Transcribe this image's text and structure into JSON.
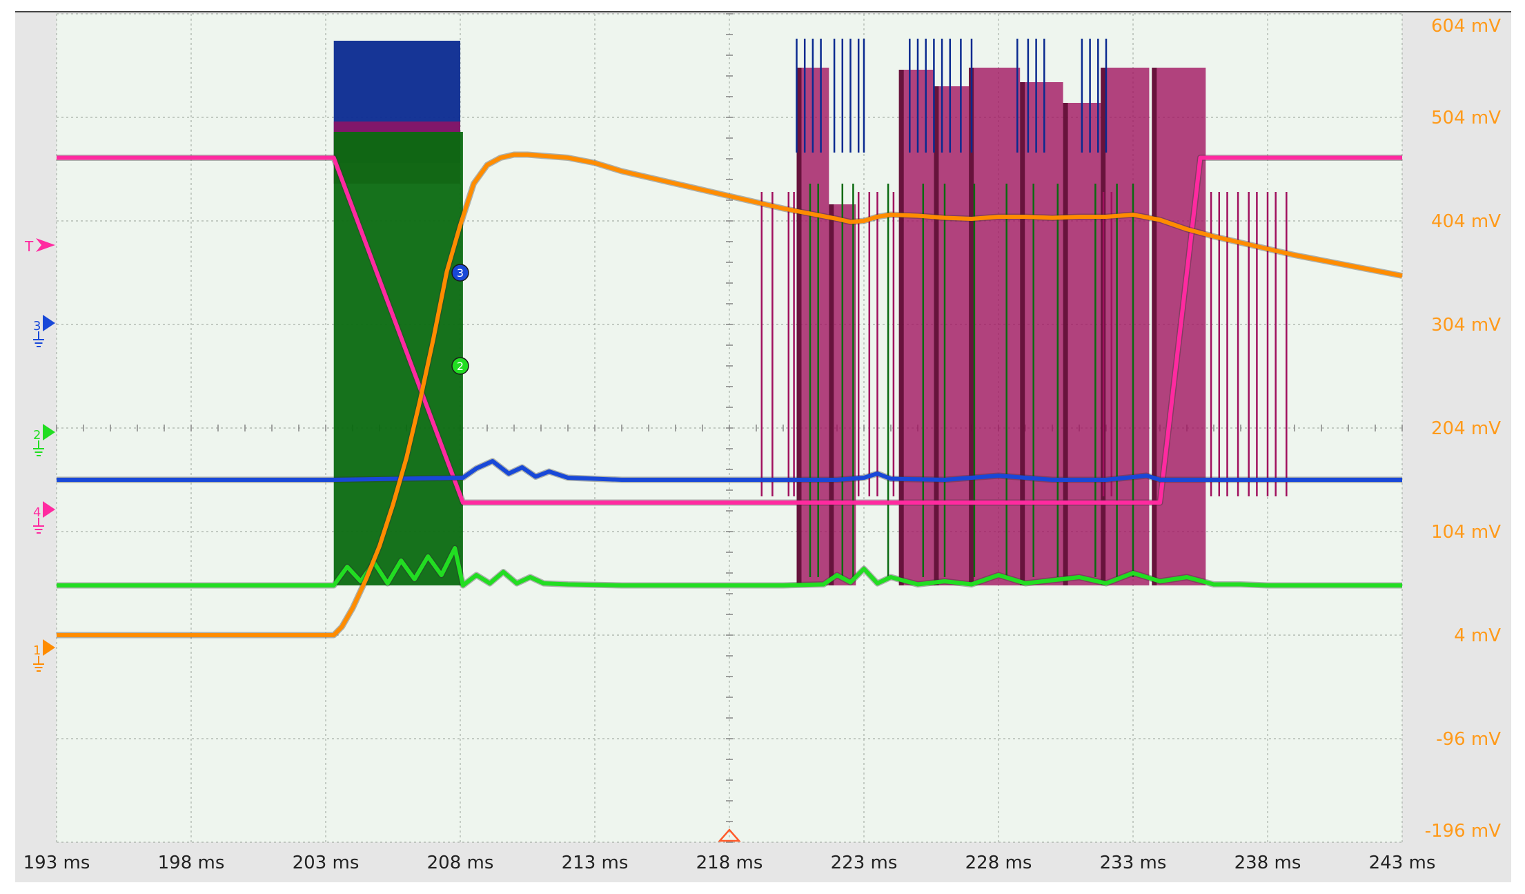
{
  "colors": {
    "ch1": "#ff8c00",
    "ch2": "#22dd22",
    "ch2_burst": "#0a6a10",
    "ch3": "#1848d8",
    "ch3_burst": "#0a2a90",
    "ch4": "#ff2aa0",
    "ch4_burst": "#a0105e",
    "ch4_dark": "#5a0a30",
    "axis_text": "#ff9a1a",
    "grid": "#a8b0a8",
    "plot_bg": "#eef5ee",
    "frame": "#e6e6e6"
  },
  "markers": {
    "trigger": {
      "label": "T",
      "color": "#ff2aa0"
    },
    "channels": [
      {
        "label": "3",
        "color": "#1848d8"
      },
      {
        "label": "2",
        "color": "#22dd22"
      },
      {
        "label": "4",
        "color": "#ff2aa0"
      },
      {
        "label": "1",
        "color": "#ff8c00"
      }
    ]
  },
  "chart_data": {
    "type": "line",
    "title": "",
    "xlabel": "",
    "ylabel": "",
    "x_ticks": [
      "193 ms",
      "198 ms",
      "203 ms",
      "208 ms",
      "213 ms",
      "218 ms",
      "223 ms",
      "228 ms",
      "233 ms",
      "238 ms",
      "243 ms"
    ],
    "y_ticks": [
      "604 mV",
      "504 mV",
      "404 mV",
      "304 mV",
      "204 mV",
      "104 mV",
      "4 mV",
      "-96 mV",
      "-196 mV"
    ],
    "xlim": [
      193,
      243
    ],
    "ylim": [
      -196,
      604
    ],
    "grid": true,
    "series": [
      {
        "id": "ch1",
        "x": [
          193,
          196,
          199,
          202,
          203.3,
          203.6,
          204,
          204.5,
          205,
          205.5,
          206,
          206.5,
          207,
          207.5,
          208,
          208.5,
          209,
          209.5,
          210,
          210.5,
          211,
          212,
          213,
          214,
          215,
          216,
          217,
          218,
          219,
          220,
          221,
          222,
          222.5,
          223,
          223.5,
          224,
          225,
          226,
          227,
          228,
          229,
          230,
          231,
          232,
          233,
          234,
          235,
          236,
          237,
          238,
          239,
          240,
          241,
          242,
          243
        ],
        "y": [
          4,
          4,
          4,
          4,
          4,
          12,
          30,
          58,
          90,
          130,
          175,
          230,
          290,
          355,
          400,
          440,
          458,
          465,
          468,
          468,
          467,
          465,
          460,
          452,
          446,
          440,
          434,
          428,
          422,
          416,
          411,
          406,
          403,
          404,
          408,
          410,
          409,
          407,
          406,
          408,
          408,
          407,
          408,
          408,
          410,
          405,
          396,
          389,
          383,
          377,
          371,
          366,
          361,
          356,
          351
        ]
      },
      {
        "id": "ch2",
        "x": [
          193,
          196,
          199,
          202,
          203.3,
          203.8,
          204.3,
          204.8,
          205.3,
          205.8,
          206.3,
          206.8,
          207.3,
          207.8,
          208.1,
          208.6,
          209.1,
          209.6,
          210.1,
          210.6,
          211.1,
          212,
          214,
          216,
          218,
          220,
          221.5,
          222,
          222.5,
          223,
          223.5,
          224,
          225,
          226,
          227,
          228,
          229,
          230,
          231,
          232,
          233,
          234,
          235,
          236,
          237,
          238,
          240,
          243
        ],
        "y": [
          52,
          52,
          52,
          52,
          52,
          70,
          56,
          74,
          54,
          76,
          58,
          80,
          62,
          88,
          52,
          62,
          54,
          65,
          54,
          60,
          54,
          53,
          52,
          52,
          52,
          52,
          53,
          62,
          55,
          68,
          54,
          60,
          53,
          56,
          53,
          62,
          54,
          57,
          60,
          54,
          64,
          56,
          60,
          53,
          53,
          52,
          52,
          52
        ]
      },
      {
        "id": "ch3",
        "x": [
          193,
          196,
          199,
          202,
          203.3,
          208.1,
          208.6,
          209.2,
          209.8,
          210.3,
          210.8,
          211.3,
          212,
          213,
          214,
          215,
          216,
          218,
          220,
          222,
          223,
          223.5,
          224,
          226,
          228,
          230,
          232,
          233.5,
          234,
          236,
          238,
          240,
          243
        ],
        "y": [
          154,
          154,
          154,
          154,
          154,
          156,
          165,
          172,
          160,
          166,
          157,
          162,
          156,
          155,
          154,
          154,
          154,
          154,
          154,
          154,
          156,
          160,
          155,
          154,
          158,
          154,
          154,
          158,
          154,
          154,
          154,
          154,
          154
        ]
      },
      {
        "id": "ch4",
        "x": [
          193,
          196,
          199,
          202,
          203.3,
          208.1,
          210,
          213,
          216,
          219,
          222,
          225,
          228,
          231,
          234,
          235.5,
          236,
          238,
          240,
          243
        ],
        "y": [
          465,
          465,
          465,
          465,
          465,
          132,
          132,
          132,
          132,
          132,
          132,
          132,
          132,
          132,
          132,
          465,
          465,
          465,
          465,
          465
        ]
      }
    ],
    "bursts": [
      {
        "series": "ch3",
        "start": 203.3,
        "end": 208.0,
        "low": 460,
        "high": 578
      },
      {
        "series": "ch4",
        "start": 203.3,
        "end": 208.0,
        "low": 440,
        "high": 500
      },
      {
        "series": "ch2",
        "start": 203.3,
        "end": 208.1,
        "low": 52,
        "high": 490
      },
      {
        "series": "ch4",
        "start": 220.5,
        "end": 221.7,
        "low": 52,
        "high": 552
      },
      {
        "series": "ch4",
        "start": 221.7,
        "end": 222.7,
        "low": 52,
        "high": 420
      },
      {
        "series": "ch4",
        "start": 224.3,
        "end": 225.6,
        "low": 52,
        "high": 550
      },
      {
        "series": "ch4",
        "start": 225.6,
        "end": 226.9,
        "low": 52,
        "high": 534
      },
      {
        "series": "ch4",
        "start": 226.9,
        "end": 228.8,
        "low": 52,
        "high": 552
      },
      {
        "series": "ch4",
        "start": 228.8,
        "end": 230.4,
        "low": 52,
        "high": 538
      },
      {
        "series": "ch4",
        "start": 230.4,
        "end": 231.8,
        "low": 52,
        "high": 518
      },
      {
        "series": "ch4",
        "start": 231.8,
        "end": 233.6,
        "low": 52,
        "high": 552
      },
      {
        "series": "ch4",
        "start": 233.7,
        "end": 235.7,
        "low": 52,
        "high": 552
      }
    ],
    "spikes": [
      {
        "series": "ch4",
        "x": [
          219.2,
          219.6,
          220.2,
          220.4,
          222.8,
          223.2,
          223.5,
          224.1,
          231.9,
          232.2,
          235.9,
          236.2,
          236.5,
          236.9,
          237.3,
          237.6,
          238.0,
          238.3,
          238.7
        ],
        "low": 138,
        "high": 432
      },
      {
        "series": "ch3",
        "x": [
          220.5,
          220.8,
          221.1,
          221.4,
          221.9,
          222.2,
          222.5,
          222.8,
          223.0,
          224.7,
          225.0,
          225.3,
          225.6,
          225.9,
          226.2,
          226.6,
          227.0,
          228.7,
          229.1,
          229.4,
          229.7,
          231.1,
          231.4,
          231.7,
          232.0
        ],
        "low": 470,
        "high": 580
      },
      {
        "series": "ch2",
        "x": [
          221.0,
          221.3,
          222.2,
          222.6,
          223.9,
          225.2,
          226.0,
          227.1,
          228.3,
          229.3,
          230.2,
          231.6,
          232.4,
          233.0
        ],
        "low": 60,
        "high": 440
      }
    ],
    "markers_at": [
      {
        "label": "3",
        "x": 208,
        "y": 354
      },
      {
        "label": "2",
        "x": 208,
        "y": 264
      }
    ],
    "trigger_time": 218
  }
}
